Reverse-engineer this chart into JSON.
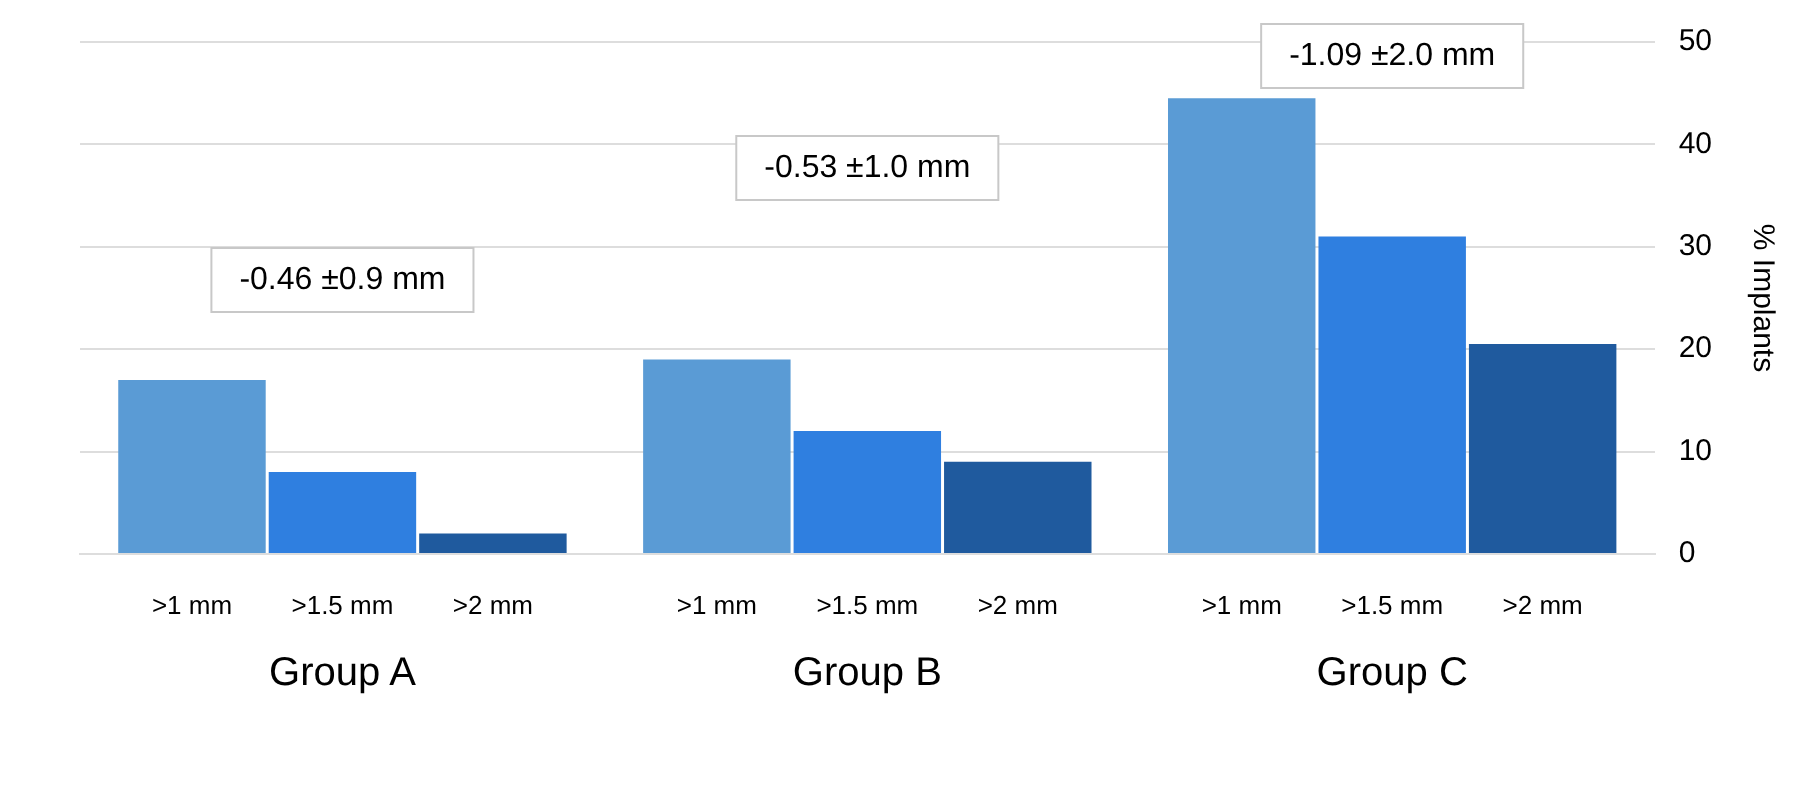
{
  "chart_data": {
    "type": "bar",
    "ylabel": "% Implants",
    "categories": [
      "Group A",
      "Group B",
      "Group C"
    ],
    "series": [
      {
        "name": ">1 mm",
        "color": "#5a9bd5",
        "values": [
          17,
          19,
          44.5
        ]
      },
      {
        "name": ">1.5 mm",
        "color": "#2f7fe0",
        "values": [
          8,
          12,
          31
        ]
      },
      {
        "name": ">2 mm",
        "color": "#1f5a9e",
        "values": [
          2,
          9,
          20.5
        ]
      }
    ],
    "ylim": [
      0,
      50
    ],
    "yticks": [
      0,
      10,
      20,
      30,
      40,
      50
    ],
    "grid": "y",
    "legend": false,
    "annotations": [
      "-0.46 ±0.9 mm",
      "-0.53 ±1.0 mm",
      "-1.09 ±2.0 mm"
    ]
  }
}
